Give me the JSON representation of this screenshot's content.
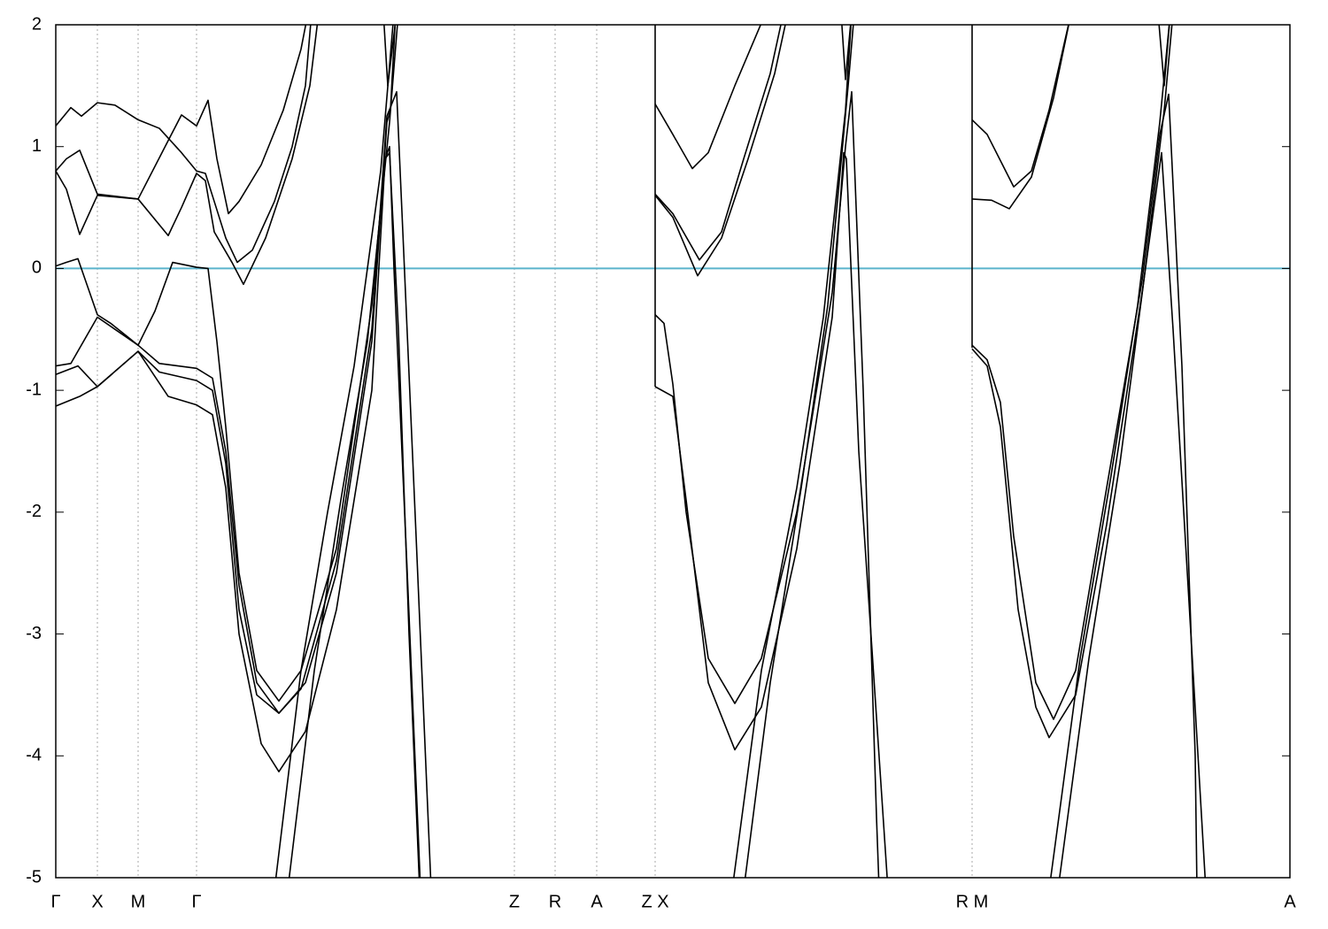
{
  "chart_data": {
    "type": "line",
    "xlim": [
      0,
      1394
    ],
    "ylim": [
      -5,
      2
    ],
    "xticks": [
      {
        "value": 0,
        "label": "Γ"
      },
      {
        "value": 47,
        "label": "X"
      },
      {
        "value": 93,
        "label": "M"
      },
      {
        "value": 159,
        "label": "Γ"
      },
      {
        "value": 518,
        "label": "Z"
      },
      {
        "value": 564,
        "label": "R"
      },
      {
        "value": 611,
        "label": "A"
      },
      {
        "value": 677,
        "label": "Z X"
      },
      {
        "value": 1035,
        "label": "R M"
      },
      {
        "value": 1394,
        "label": "A"
      }
    ],
    "yticks": [
      -5,
      -4,
      -3,
      -2,
      -1,
      0,
      1,
      2
    ],
    "xgrid": true,
    "line_color": "#000000",
    "fermi_level": 0,
    "fermi_color": "#5ab4cc",
    "series": [
      {
        "x": [
          0,
          17,
          29,
          47,
          67,
          93,
          117,
          142,
          159,
          169,
          179,
          192,
          205,
          222,
          247,
          267,
          282,
          289
        ],
        "values": [
          1.17,
          1.32,
          1.25,
          1.36,
          1.34,
          1.22,
          1.15,
          0.95,
          0.8,
          0.78,
          0.55,
          0.25,
          0.05,
          0.15,
          0.55,
          1.0,
          1.5,
          2.1
        ]
      },
      {
        "x": [
          0,
          12,
          27,
          47,
          93,
          127,
          142,
          159,
          169,
          179,
          199,
          212,
          237,
          267,
          287,
          297
        ],
        "values": [
          0.8,
          0.65,
          0.28,
          0.6,
          0.57,
          0.27,
          0.5,
          0.78,
          0.72,
          0.3,
          0.05,
          -0.13,
          0.25,
          0.9,
          1.5,
          2.1
        ]
      },
      {
        "x": [
          0,
          12,
          27,
          47,
          93,
          127,
          142,
          159,
          172,
          182,
          195,
          207,
          232,
          257,
          277,
          285
        ],
        "values": [
          0.8,
          0.9,
          0.97,
          0.61,
          0.57,
          1.05,
          1.26,
          1.17,
          1.38,
          0.9,
          0.45,
          0.55,
          0.85,
          1.3,
          1.8,
          2.1
        ]
      },
      {
        "x": [
          0,
          12,
          25,
          47,
          62,
          93,
          112,
          132,
          159,
          172,
          182,
          192,
          207,
          227,
          252,
          277,
          317,
          357,
          372,
          377,
          382,
          397,
          412
        ],
        "values": [
          0.02,
          0.05,
          0.08,
          -0.38,
          -0.45,
          -0.63,
          -0.35,
          0.05,
          0.01,
          0.0,
          -0.6,
          -1.3,
          -2.5,
          -3.3,
          -3.55,
          -3.3,
          -2.3,
          -0.3,
          0.9,
          1.0,
          0.0,
          -2.5,
          -5.1
        ]
      },
      {
        "x": [
          0,
          17,
          47,
          93,
          117,
          159,
          177,
          192,
          207,
          227,
          252,
          277,
          317,
          357,
          374,
          385,
          392,
          407,
          424
        ],
        "values": [
          -0.8,
          -0.78,
          -0.4,
          -0.63,
          -0.78,
          -0.82,
          -0.9,
          -1.5,
          -2.6,
          -3.4,
          -3.65,
          -3.45,
          -2.4,
          -0.5,
          1.25,
          1.45,
          0.3,
          -2.2,
          -5.1
        ]
      },
      {
        "x": [
          0,
          25,
          47,
          93,
          117,
          159,
          177,
          192,
          207,
          227,
          252,
          282,
          317,
          357,
          374,
          378,
          384
        ],
        "values": [
          -0.87,
          -0.8,
          -0.97,
          -0.68,
          -0.85,
          -0.92,
          -1.0,
          -1.6,
          -2.8,
          -3.5,
          -3.65,
          -3.4,
          -2.5,
          -0.6,
          1.2,
          1.3,
          2.1
        ]
      },
      {
        "x": [
          0,
          27,
          47,
          93,
          127,
          159,
          177,
          192,
          207,
          232,
          252,
          282,
          317,
          357,
          372,
          377,
          387,
          399,
          411
        ],
        "values": [
          -1.13,
          -1.05,
          -0.97,
          -0.68,
          -1.05,
          -1.12,
          -1.2,
          -1.8,
          -3.0,
          -3.9,
          -4.13,
          -3.8,
          -2.8,
          -1.0,
          0.9,
          0.95,
          -0.5,
          -3.0,
          -5.1
        ]
      },
      {
        "x": [
          247,
          277,
          307,
          337,
          367,
          382
        ],
        "values": [
          -5.1,
          -3.3,
          -2.0,
          -0.8,
          0.8,
          2.1
        ]
      },
      {
        "x": [
          262,
          292,
          322,
          352,
          377,
          387
        ],
        "values": [
          -5.1,
          -3.3,
          -1.9,
          -0.6,
          1.2,
          2.1
        ]
      },
      {
        "x": [
          370,
          375,
          385
        ],
        "values": [
          2.1,
          1.5,
          2.1
        ]
      },
      {
        "x": [
          677,
          677
        ],
        "values": [
          -0.97,
          2.1
        ]
      },
      {
        "x": [
          677,
          697,
          719,
          737,
          767,
          802
        ],
        "values": [
          1.35,
          1.1,
          0.82,
          0.95,
          1.5,
          2.1
        ]
      },
      {
        "x": [
          677,
          697,
          727,
          752,
          777,
          807,
          822
        ],
        "values": [
          0.61,
          0.45,
          0.07,
          0.3,
          0.9,
          1.6,
          2.1
        ]
      },
      {
        "x": [
          677,
          697,
          725,
          752,
          782,
          812,
          827
        ],
        "values": [
          0.6,
          0.42,
          -0.06,
          0.25,
          0.9,
          1.6,
          2.1
        ]
      },
      {
        "x": [
          677,
          687,
          697,
          712,
          737,
          767,
          797,
          837,
          877,
          892,
          899,
          912,
          927,
          930
        ],
        "values": [
          -0.38,
          -0.45,
          -0.95,
          -2.0,
          -3.2,
          -3.57,
          -3.2,
          -2.0,
          -0.2,
          1.0,
          1.45,
          -1.0,
          -4.5,
          -5.1
        ]
      },
      {
        "x": [
          677,
          697,
          712,
          737,
          767,
          797,
          837,
          877,
          890,
          893,
          907,
          940
        ],
        "values": [
          -0.97,
          -1.05,
          -1.9,
          -3.4,
          -3.95,
          -3.6,
          -2.3,
          -0.4,
          0.95,
          0.9,
          -1.5,
          -5.1
        ]
      },
      {
        "x": [
          764,
          797,
          837,
          867,
          892,
          899
        ],
        "values": [
          -5.1,
          -3.3,
          -1.8,
          -0.4,
          1.3,
          2.1
        ]
      },
      {
        "x": [
          777,
          807,
          842,
          872,
          895,
          902
        ],
        "values": [
          -5.1,
          -3.4,
          -1.8,
          -0.3,
          1.5,
          2.1
        ]
      },
      {
        "x": [
          887,
          892,
          899
        ],
        "values": [
          2.1,
          1.55,
          2.1
        ]
      },
      {
        "x": [
          1035,
          1035
        ],
        "values": [
          -0.65,
          2.1
        ]
      },
      {
        "x": [
          1035,
          1052,
          1082,
          1102,
          1122,
          1147
        ],
        "values": [
          1.22,
          1.1,
          0.67,
          0.8,
          1.3,
          2.1
        ]
      },
      {
        "x": [
          1035,
          1057,
          1077,
          1102,
          1127,
          1147
        ],
        "values": [
          0.57,
          0.56,
          0.49,
          0.75,
          1.4,
          2.1
        ]
      },
      {
        "x": [
          1035,
          1052,
          1067,
          1082,
          1107,
          1127,
          1152,
          1187,
          1227,
          1247,
          1257,
          1272,
          1287,
          1289
        ],
        "values": [
          -0.63,
          -0.75,
          -1.1,
          -2.2,
          -3.4,
          -3.7,
          -3.3,
          -1.8,
          -0.1,
          1.1,
          1.43,
          -0.8,
          -4.0,
          -5.1
        ]
      },
      {
        "x": [
          1035,
          1052,
          1067,
          1087,
          1107,
          1122,
          1152,
          1187,
          1227,
          1249,
          1262,
          1299
        ],
        "values": [
          -0.66,
          -0.8,
          -1.3,
          -2.8,
          -3.6,
          -3.85,
          -3.5,
          -2.1,
          -0.2,
          0.95,
          -0.5,
          -5.1
        ]
      },
      {
        "x": [
          1122,
          1157,
          1192,
          1222,
          1247,
          1259
        ],
        "values": [
          -5.1,
          -3.2,
          -1.7,
          -0.3,
          1.2,
          2.1
        ]
      },
      {
        "x": [
          1132,
          1167,
          1202,
          1229,
          1252,
          1262
        ],
        "values": [
          -5.1,
          -3.2,
          -1.6,
          -0.1,
          1.3,
          2.1
        ]
      },
      {
        "x": [
          1245,
          1252,
          1259
        ],
        "values": [
          2.1,
          1.5,
          2.1
        ]
      }
    ]
  }
}
